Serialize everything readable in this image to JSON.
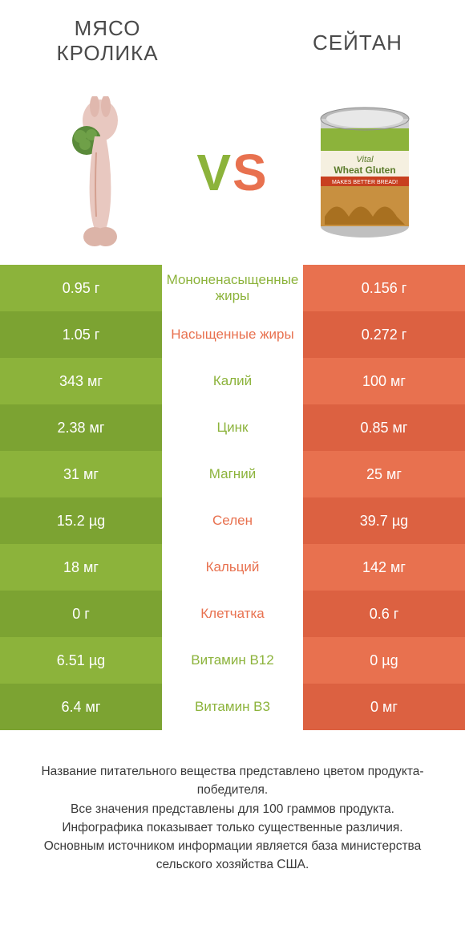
{
  "header": {
    "left_title": "МЯСО КРОЛИКА",
    "right_title": "СЕЙТАН",
    "vs_text": "VS"
  },
  "colors": {
    "green": "#8cb33b",
    "orange": "#e8714f",
    "green_dark": "#7ca332",
    "orange_dark": "#dc6141",
    "text_dark": "#4a4a4a"
  },
  "rows": [
    {
      "label": "Мононенасыщенные жиры",
      "left": "0.95 г",
      "right": "0.156 г",
      "winner": "left"
    },
    {
      "label": "Насыщенные жиры",
      "left": "1.05 г",
      "right": "0.272 г",
      "winner": "right"
    },
    {
      "label": "Калий",
      "left": "343 мг",
      "right": "100 мг",
      "winner": "left"
    },
    {
      "label": "Цинк",
      "left": "2.38 мг",
      "right": "0.85 мг",
      "winner": "left"
    },
    {
      "label": "Магний",
      "left": "31 мг",
      "right": "25 мг",
      "winner": "left"
    },
    {
      "label": "Селен",
      "left": "15.2 µg",
      "right": "39.7 µg",
      "winner": "right"
    },
    {
      "label": "Кальций",
      "left": "18 мг",
      "right": "142 мг",
      "winner": "right"
    },
    {
      "label": "Клетчатка",
      "left": "0 г",
      "right": "0.6 г",
      "winner": "right"
    },
    {
      "label": "Витамин B12",
      "left": "6.51 µg",
      "right": "0 µg",
      "winner": "left"
    },
    {
      "label": "Витамин B3",
      "left": "6.4 мг",
      "right": "0 мг",
      "winner": "left"
    }
  ],
  "footer": {
    "line1": "Название питательного вещества представлено цветом продукта-победителя.",
    "line2": "Все значения представлены для 100 граммов продукта.",
    "line3": "Инфографика показывает только существенные различия.",
    "line4": "Основным источником информации является база министерства сельского хозяйства США."
  }
}
